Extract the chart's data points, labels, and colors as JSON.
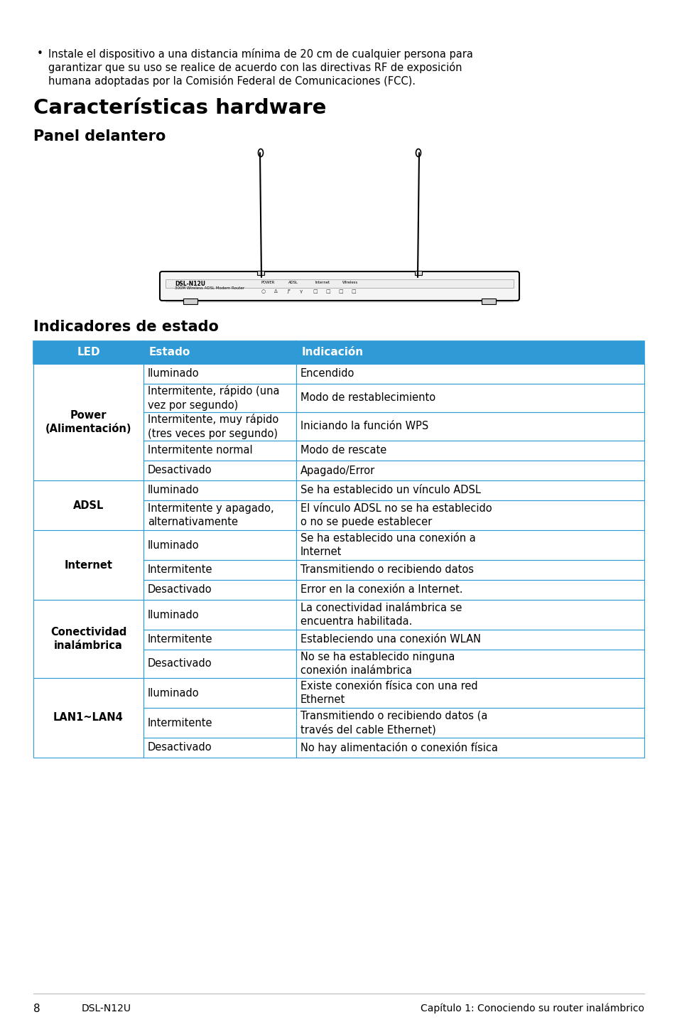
{
  "bg_color": "#ffffff",
  "bullet_text_lines": [
    "Instale el dispositivo a una distancia mínima de 20 cm de cualquier persona para",
    "garantizar que su uso se realice de acuerdo con las directivas RF de exposición",
    "humana adoptadas por la Comisión Federal de Comunicaciones (FCC)."
  ],
  "title1": "Características hardware",
  "title2": "Panel delantero",
  "title3": "Indicadores de estado",
  "header_bg": "#2E9BD6",
  "header_text_color": "#ffffff",
  "border_color": "#2E9BD6",
  "table_headers": [
    "LED",
    "Estado",
    "Indicación"
  ],
  "rows_data": [
    [
      "",
      "Iluminado",
      "Encendido",
      28
    ],
    [
      "",
      "Intermitente, rápido (una\nvez por segundo)",
      "Modo de restablecimiento",
      40
    ],
    [
      "Power\n(Alimentación)",
      "Intermitente, muy rápido\n(tres veces por segundo)",
      "Iniciando la función WPS",
      40
    ],
    [
      "",
      "Intermitente normal",
      "Modo de rescate",
      28
    ],
    [
      "",
      "Desactivado",
      "Apagado/Error",
      28
    ],
    [
      "ADSL",
      "Iluminado",
      "Se ha establecido un vínculo ADSL",
      28
    ],
    [
      "",
      "Intermitente y apagado,\nalternativamente",
      "El vínculo ADSL no se ha establecido\no no se puede establecer",
      42
    ],
    [
      "Internet",
      "Iluminado",
      "Se ha establecido una conexión a\nInternet",
      42
    ],
    [
      "",
      "Intermitente",
      "Transmitiendo o recibiendo datos",
      28
    ],
    [
      "",
      "Desactivado",
      "Error en la conexión a Internet.",
      28
    ],
    [
      "Conectividad\ninalámbrica",
      "Iluminado",
      "La conectividad inalámbrica se\nencuentra habilitada.",
      42
    ],
    [
      "",
      "Intermitente",
      "Estableciendo una conexión WLAN",
      28
    ],
    [
      "",
      "Desactivado",
      "No se ha establecido ninguna\nconexión inalámbrica",
      40
    ],
    [
      "LAN1~LAN4",
      "Iluminado",
      "Existe conexión física con una red\nEthernet",
      42
    ],
    [
      "",
      "Intermitente",
      "Transmitiendo o recibiendo datos (a\ntravés del cable Ethernet)",
      42
    ],
    [
      "",
      "Desactivado",
      "No hay alimentación o conexión física",
      28
    ]
  ],
  "led_groups": [
    {
      "led": "Power\n(Alimentación)",
      "start": 0,
      "end": 4
    },
    {
      "led": "ADSL",
      "start": 5,
      "end": 6
    },
    {
      "led": "Internet",
      "start": 7,
      "end": 9
    },
    {
      "led": "Conectividad\ninalámbrica",
      "start": 10,
      "end": 12
    },
    {
      "led": "LAN1~LAN4",
      "start": 13,
      "end": 15
    }
  ],
  "footer_left_num": "8",
  "footer_model": "DSL-N12U",
  "footer_right": "Capítulo 1: Conociendo su router inalámbrico"
}
